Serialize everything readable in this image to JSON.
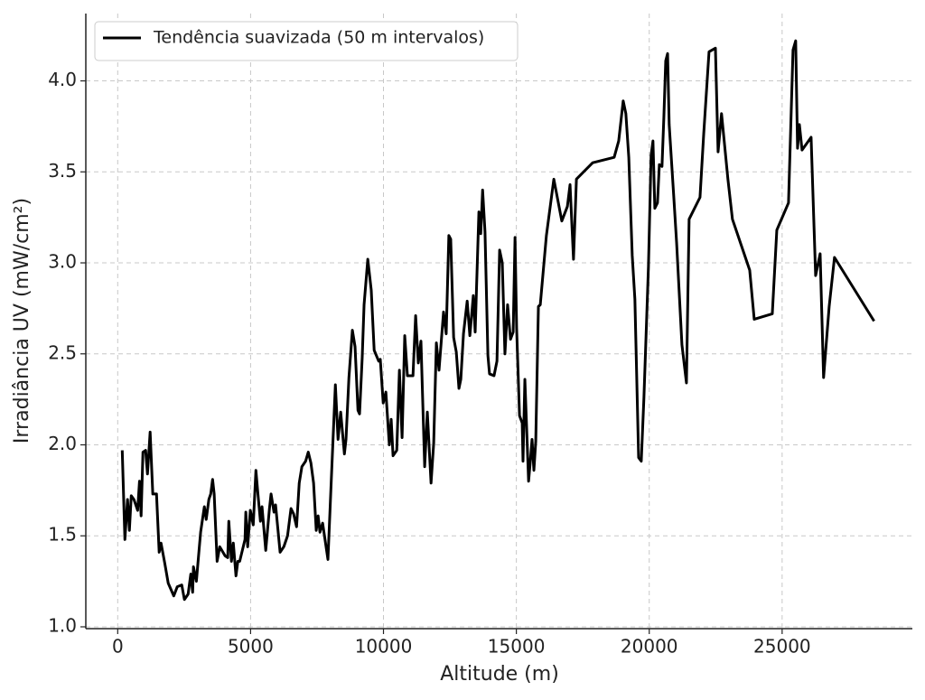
{
  "chart_data": {
    "type": "line",
    "xlabel": "Altitude (m)",
    "ylabel": "Irradiância UV (mW/cm²)",
    "xlim": [
      -1200,
      29900
    ],
    "ylim": [
      0.99,
      4.37
    ],
    "xticks": [
      0,
      5000,
      10000,
      15000,
      20000,
      25000
    ],
    "yticks": [
      {
        "value": 1.0,
        "label": "1.0"
      },
      {
        "value": 1.5,
        "label": "1.5"
      },
      {
        "value": 2.0,
        "label": "2.0"
      },
      {
        "value": 2.5,
        "label": "2.5"
      },
      {
        "value": 3.0,
        "label": "3.0"
      },
      {
        "value": 3.5,
        "label": "3.5"
      },
      {
        "value": 4.0,
        "label": "4.0"
      }
    ],
    "grid": true,
    "legend": "upper left",
    "x": [
      170,
      270,
      370,
      440,
      510,
      610,
      750,
      820,
      880,
      950,
      1050,
      1120,
      1220,
      1320,
      1460,
      1560,
      1630,
      1770,
      1900,
      2110,
      2240,
      2410,
      2510,
      2650,
      2750,
      2820,
      2850,
      2960,
      3060,
      3120,
      3260,
      3330,
      3430,
      3500,
      3570,
      3630,
      3740,
      3840,
      4040,
      4140,
      4180,
      4280,
      4350,
      4450,
      4520,
      4590,
      4790,
      4820,
      4890,
      4990,
      5100,
      5200,
      5270,
      5370,
      5430,
      5570,
      5710,
      5770,
      5880,
      5940,
      6110,
      6250,
      6390,
      6520,
      6620,
      6730,
      6830,
      6930,
      7070,
      7170,
      7270,
      7370,
      7470,
      7540,
      7610,
      7710,
      7910,
      8020,
      8190,
      8290,
      8390,
      8530,
      8590,
      8700,
      8830,
      8930,
      9040,
      9100,
      9200,
      9270,
      9410,
      9540,
      9650,
      9820,
      9880,
      9990,
      10090,
      10220,
      10290,
      10360,
      10500,
      10600,
      10700,
      10800,
      10900,
      11110,
      11210,
      11310,
      11410,
      11550,
      11650,
      11790,
      11890,
      11990,
      12090,
      12260,
      12360,
      12460,
      12530,
      12640,
      12740,
      12840,
      12910,
      13010,
      13150,
      13250,
      13380,
      13450,
      13590,
      13660,
      13730,
      13820,
      13930,
      13990,
      14160,
      14270,
      14370,
      14470,
      14570,
      14670,
      14780,
      14880,
      14950,
      15010,
      15120,
      15220,
      15250,
      15320,
      15460,
      15520,
      15590,
      15660,
      15730,
      15830,
      15900,
      16130,
      16410,
      16710,
      16920,
      17020,
      17150,
      17260,
      17870,
      18680,
      18850,
      19020,
      19120,
      19230,
      19360,
      19460,
      19600,
      19700,
      19800,
      19970,
      20070,
      20140,
      20210,
      20310,
      20380,
      20480,
      20550,
      20620,
      20690,
      20750,
      20920,
      21030,
      21230,
      21400,
      21500,
      21910,
      22050,
      22250,
      22490,
      22590,
      22720,
      22960,
      23130,
      23780,
      23950,
      24630,
      24800,
      25240,
      25410,
      25510,
      25580,
      25650,
      25750,
      26090,
      26260,
      26430,
      26560,
      26770,
      26970,
      28460
    ],
    "series": [
      {
        "name": "Tendência suavizada (50 m intervalos)",
        "color": "#000000",
        "values": [
          1.97,
          1.48,
          1.7,
          1.53,
          1.72,
          1.7,
          1.64,
          1.8,
          1.61,
          1.96,
          1.97,
          1.84,
          2.07,
          1.73,
          1.73,
          1.41,
          1.46,
          1.35,
          1.24,
          1.17,
          1.22,
          1.23,
          1.15,
          1.18,
          1.29,
          1.19,
          1.33,
          1.25,
          1.42,
          1.52,
          1.66,
          1.59,
          1.7,
          1.73,
          1.81,
          1.73,
          1.36,
          1.44,
          1.39,
          1.38,
          1.58,
          1.36,
          1.46,
          1.28,
          1.36,
          1.36,
          1.48,
          1.63,
          1.44,
          1.64,
          1.56,
          1.86,
          1.74,
          1.58,
          1.66,
          1.42,
          1.65,
          1.73,
          1.63,
          1.67,
          1.41,
          1.44,
          1.5,
          1.65,
          1.62,
          1.55,
          1.79,
          1.88,
          1.91,
          1.96,
          1.9,
          1.79,
          1.53,
          1.61,
          1.52,
          1.57,
          1.37,
          1.75,
          2.33,
          2.03,
          2.18,
          1.95,
          2.03,
          2.37,
          2.63,
          2.54,
          2.19,
          2.17,
          2.48,
          2.77,
          3.02,
          2.85,
          2.52,
          2.46,
          2.47,
          2.23,
          2.29,
          2.0,
          2.14,
          1.94,
          1.97,
          2.41,
          2.04,
          2.6,
          2.38,
          2.38,
          2.71,
          2.45,
          2.57,
          1.88,
          2.18,
          1.79,
          2.01,
          2.56,
          2.41,
          2.73,
          2.61,
          3.15,
          3.13,
          2.59,
          2.51,
          2.31,
          2.36,
          2.61,
          2.79,
          2.6,
          2.82,
          2.62,
          3.28,
          3.16,
          3.4,
          3.17,
          2.49,
          2.39,
          2.38,
          2.46,
          3.07,
          3.0,
          2.5,
          2.77,
          2.58,
          2.62,
          3.14,
          2.64,
          2.16,
          2.12,
          1.91,
          2.36,
          1.8,
          1.9,
          2.03,
          1.86,
          2.02,
          2.76,
          2.77,
          3.15,
          3.46,
          3.23,
          3.31,
          3.43,
          3.02,
          3.46,
          3.55,
          3.58,
          3.67,
          3.89,
          3.82,
          3.58,
          3.04,
          2.8,
          1.93,
          1.91,
          2.26,
          2.98,
          3.59,
          3.67,
          3.3,
          3.33,
          3.54,
          3.53,
          3.8,
          4.11,
          4.15,
          3.76,
          3.37,
          3.11,
          2.55,
          2.34,
          3.24,
          3.36,
          3.71,
          4.16,
          4.18,
          3.61,
          3.82,
          3.46,
          3.24,
          2.96,
          2.69,
          2.72,
          3.18,
          3.33,
          4.17,
          4.22,
          3.63,
          3.76,
          3.62,
          3.69,
          2.93,
          3.05,
          2.37,
          2.76,
          3.03,
          2.68
        ]
      }
    ]
  }
}
